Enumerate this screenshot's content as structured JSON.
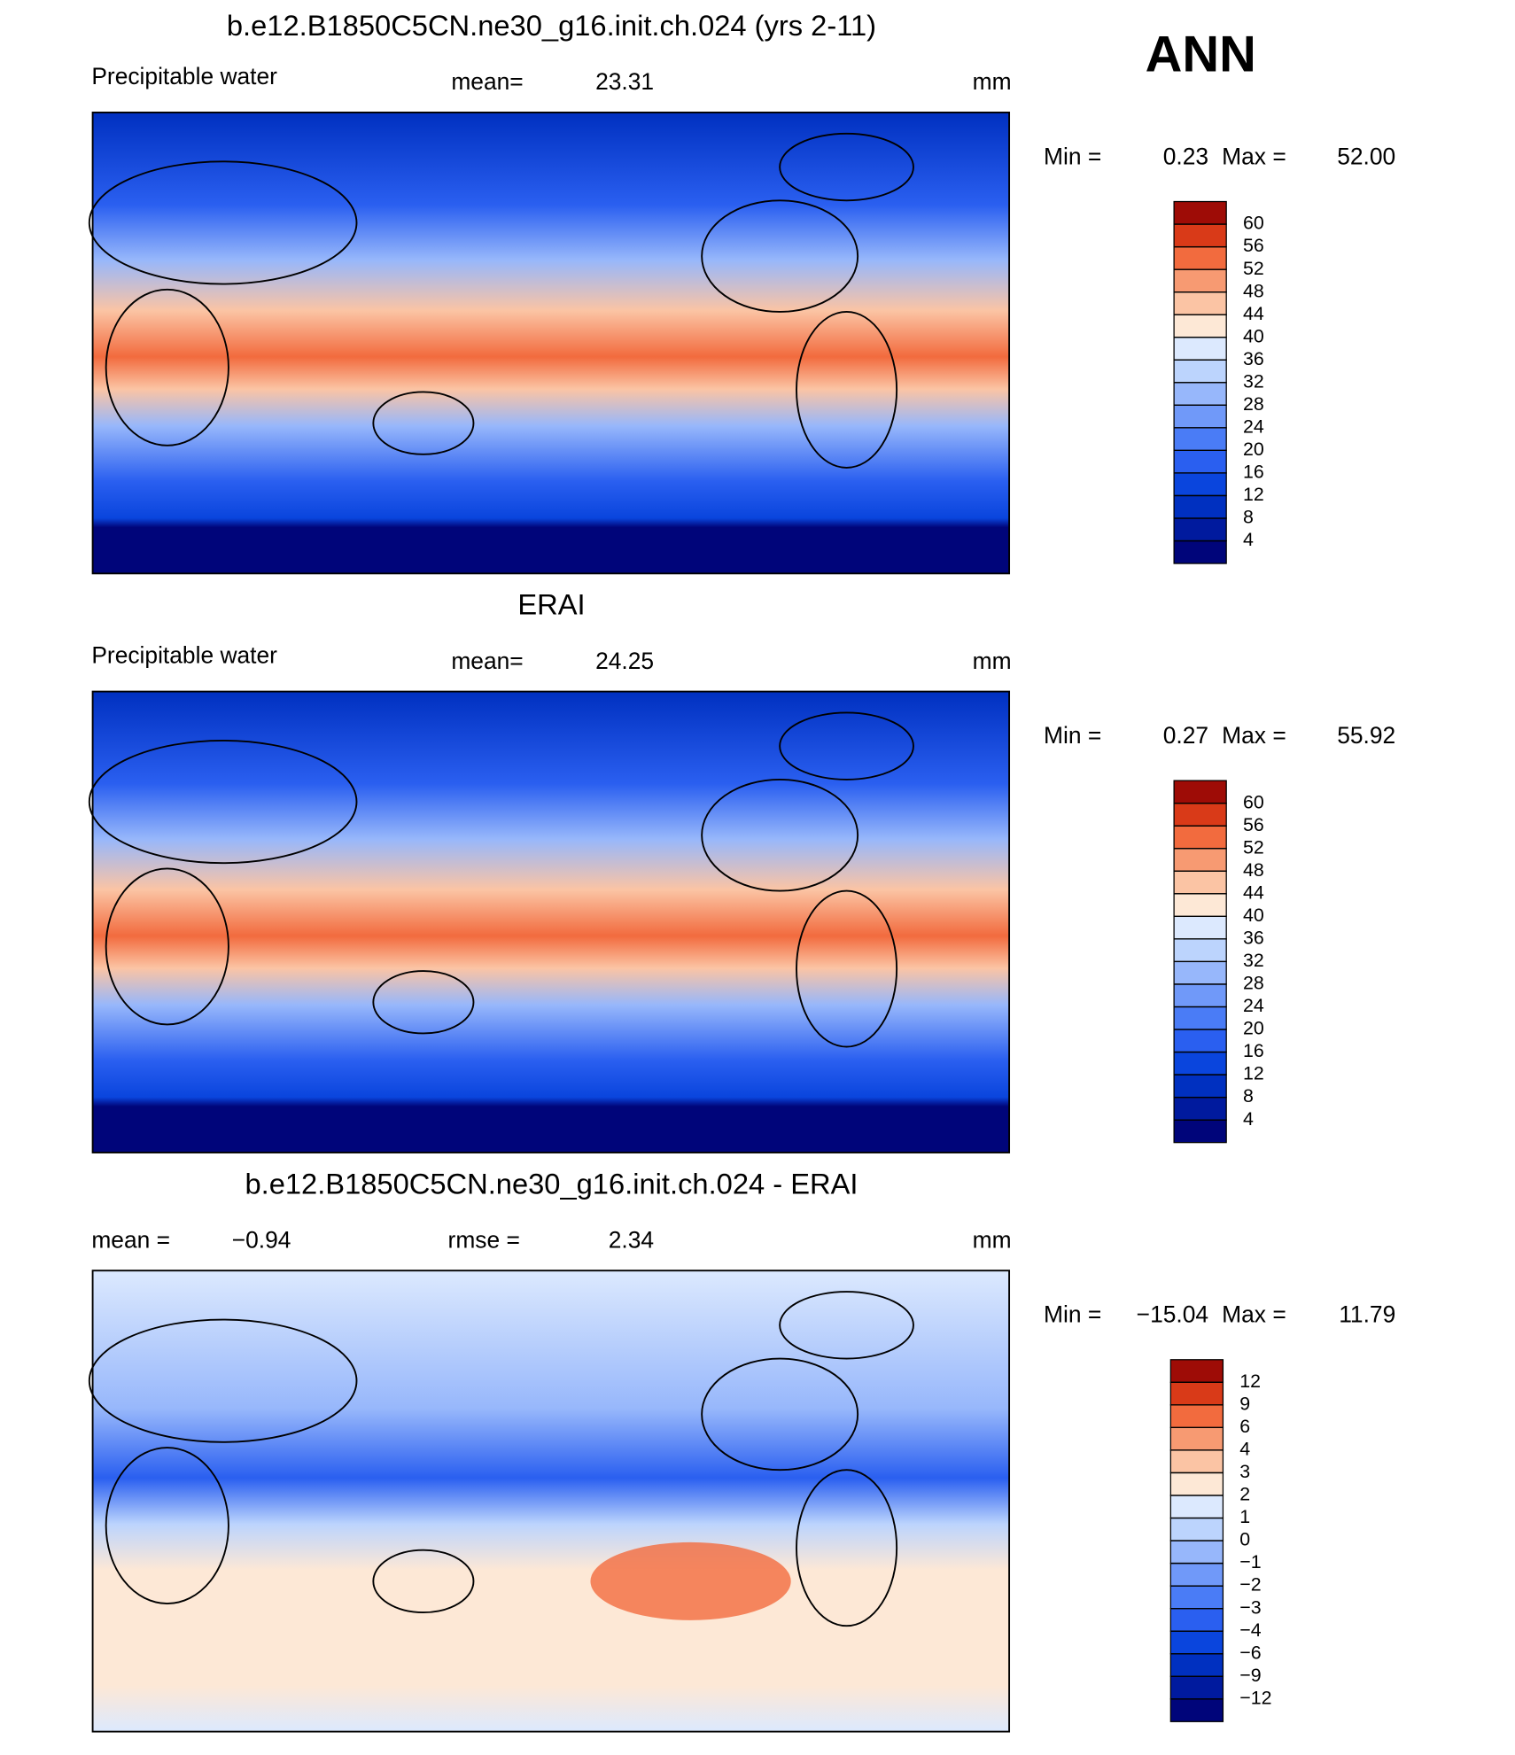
{
  "figure": {
    "season": "ANN",
    "panels": [
      {
        "title": "b.e12.B1850C5CN.ne30_g16.init.ch.024 (yrs 2-11)",
        "field": "Precipitable water",
        "stat1_label": "mean=",
        "stat1_value": "23.31",
        "units": "mm",
        "min_label": "Min =",
        "min_value": "0.23",
        "max_label": "Max =",
        "max_value": "52.00",
        "levels": [
          4,
          8,
          12,
          16,
          20,
          24,
          28,
          32,
          36,
          40,
          44,
          48,
          52,
          56,
          60
        ],
        "colors": [
          "#00057a",
          "#001a9e",
          "#0030c0",
          "#0a45dd",
          "#2a5ff0",
          "#4a7cf6",
          "#7099f9",
          "#97b7fb",
          "#bcd4fd",
          "#dce9fe",
          "#fde8d6",
          "#fbc4a4",
          "#f79a72",
          "#f26b3e",
          "#d93a18",
          "#9e0c06"
        ]
      },
      {
        "title": "ERAI",
        "field": "Precipitable water",
        "stat1_label": "mean=",
        "stat1_value": "24.25",
        "units": "mm",
        "min_label": "Min =",
        "min_value": "0.27",
        "max_label": "Max =",
        "max_value": "55.92",
        "levels": [
          4,
          8,
          12,
          16,
          20,
          24,
          28,
          32,
          36,
          40,
          44,
          48,
          52,
          56,
          60
        ],
        "colors": [
          "#00057a",
          "#001a9e",
          "#0030c0",
          "#0a45dd",
          "#2a5ff0",
          "#4a7cf6",
          "#7099f9",
          "#97b7fb",
          "#bcd4fd",
          "#dce9fe",
          "#fde8d6",
          "#fbc4a4",
          "#f79a72",
          "#f26b3e",
          "#d93a18",
          "#9e0c06"
        ]
      },
      {
        "title": "b.e12.B1850C5CN.ne30_g16.init.ch.024 - ERAI",
        "stat1_label": "mean =",
        "stat1_value": "−0.94",
        "stat2_label": "rmse =",
        "stat2_value": "2.34",
        "units": "mm",
        "min_label": "Min =",
        "min_value": "−15.04",
        "max_label": "Max =",
        "max_value": "11.79",
        "levels": [
          {
            "value": -12,
            "label": "−12"
          },
          {
            "value": -9,
            "label": "−9"
          },
          {
            "value": -6,
            "label": "−6"
          },
          {
            "value": -4,
            "label": "−4"
          },
          {
            "value": -3,
            "label": "−3"
          },
          {
            "value": -2,
            "label": "−2"
          },
          {
            "value": -1,
            "label": "−1"
          },
          0,
          1,
          2,
          3,
          4,
          6,
          9,
          12
        ],
        "colors": [
          "#00057a",
          "#001a9e",
          "#0030c0",
          "#0a45dd",
          "#2a5ff0",
          "#4a7cf6",
          "#7099f9",
          "#97b7fb",
          "#bcd4fd",
          "#dce9fe",
          "#fde8d6",
          "#fbc4a4",
          "#f79a72",
          "#f26b3e",
          "#d93a18",
          "#9e0c06"
        ]
      }
    ]
  }
}
